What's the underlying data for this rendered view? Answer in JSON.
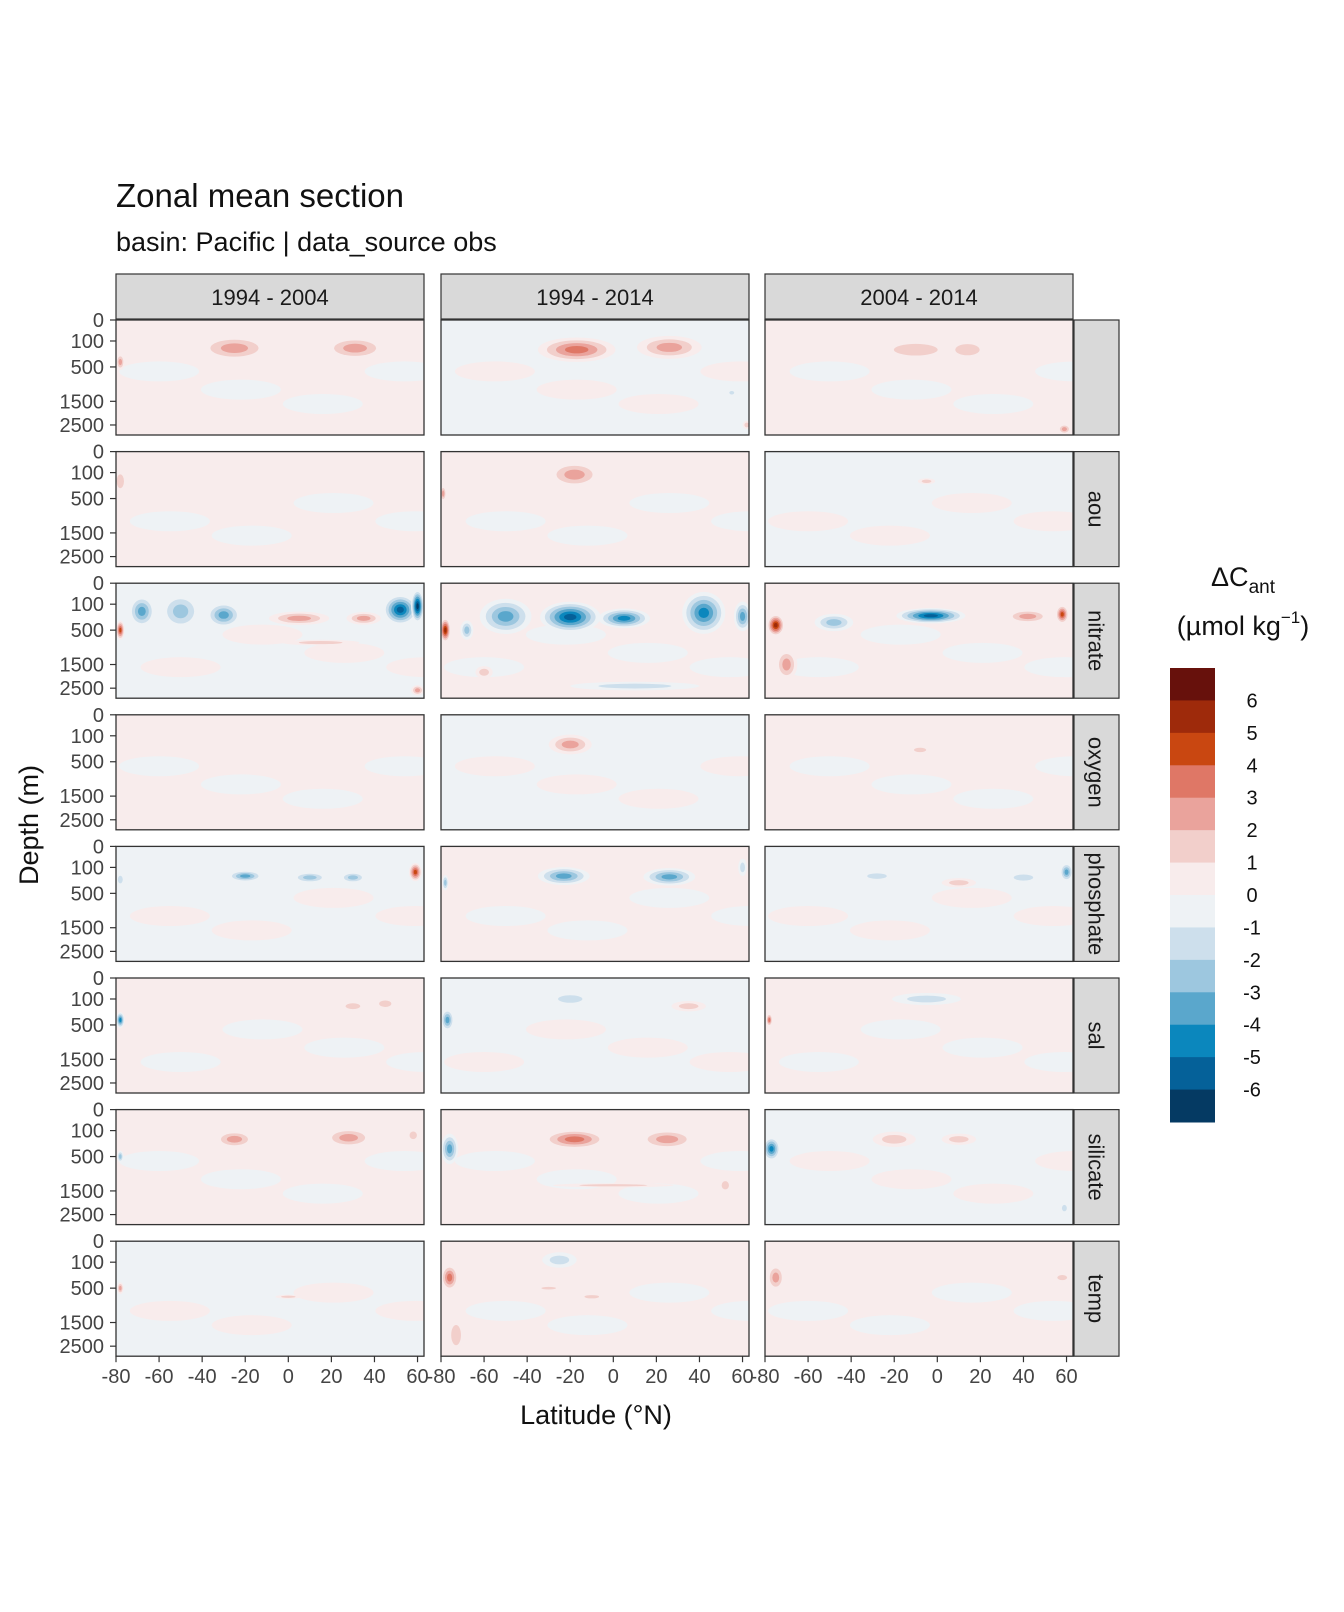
{
  "chart_data": {
    "type": "heatmap",
    "title": "Zonal mean section",
    "subtitle": "basin: Pacific | data_source obs",
    "xlabel": "Latitude (°N)",
    "ylabel": "Depth (m)",
    "x_ticks": [
      "-80",
      "-60",
      "-40",
      "-20",
      "0",
      "20",
      "40",
      "60"
    ],
    "x_tick_values": [
      -80,
      -60,
      -40,
      -20,
      0,
      20,
      40,
      60
    ],
    "xlim": [
      -80,
      63
    ],
    "y_ticks": [
      "0",
      "100",
      "500",
      "1500",
      "2500"
    ],
    "y_tick_values": [
      0,
      100,
      500,
      1500,
      2500
    ],
    "ylim": [
      3000,
      0
    ],
    "columns": [
      "1994 - 2004",
      "1994 - 2014",
      "2004 - 2014"
    ],
    "rows": [
      "",
      "aou",
      "nitrate",
      "oxygen",
      "phosphate",
      "sal",
      "silicate",
      "temp"
    ],
    "legend": {
      "title": "ΔC",
      "title_sub": "ant",
      "unit_prefix": "(µmol kg",
      "unit_sup": "−1",
      "unit_suffix": ")",
      "position": "right",
      "labels": [
        "6",
        "5",
        "4",
        "3",
        "2",
        "1",
        "0",
        "-1",
        "-2",
        "-3",
        "-4",
        "-5",
        "-6"
      ],
      "colors": [
        "#67110c",
        "#9e2a0b",
        "#c94711",
        "#df7766",
        "#eaa39c",
        "#f2cfcb",
        "#f8ecec",
        "#eef2f5",
        "#cddfec",
        "#9dc7df",
        "#5aa7cc",
        "#0b87bd",
        "#056199",
        "#053a63"
      ]
    },
    "blobs": [
      {
        "row": 0,
        "col": 0,
        "lat": -25,
        "depth": 180,
        "w": 16,
        "h": 280,
        "v": 2.2
      },
      {
        "row": 0,
        "col": 0,
        "lat": 31,
        "depth": 180,
        "w": 14,
        "h": 260,
        "v": 2.2
      },
      {
        "row": 0,
        "col": 0,
        "lat": -78,
        "depth": 400,
        "w": 2,
        "h": 300,
        "v": 2.5
      },
      {
        "row": 0,
        "col": 1,
        "lat": -17,
        "depth": 200,
        "w": 18,
        "h": 300,
        "v": 3.4
      },
      {
        "row": 0,
        "col": 1,
        "lat": 26,
        "depth": 170,
        "w": 15,
        "h": 260,
        "v": 2.6
      },
      {
        "row": 0,
        "col": 1,
        "lat": 55,
        "depth": 1200,
        "w": 2,
        "h": 200,
        "v": -1.8
      },
      {
        "row": 0,
        "col": 1,
        "lat": 62,
        "depth": 2500,
        "w": 2,
        "h": 400,
        "v": 1.5
      },
      {
        "row": 0,
        "col": 2,
        "lat": -10,
        "depth": 200,
        "w": 18,
        "h": 260,
        "v": 2
      },
      {
        "row": 0,
        "col": 2,
        "lat": 14,
        "depth": 200,
        "w": 10,
        "h": 250,
        "v": 1.6
      },
      {
        "row": 0,
        "col": 2,
        "lat": 59,
        "depth": 2700,
        "w": 3,
        "h": 500,
        "v": 2.2
      },
      {
        "row": 1,
        "col": 0,
        "lat": -78,
        "depth": 200,
        "w": 3,
        "h": 300,
        "v": 1.3
      },
      {
        "row": 1,
        "col": 1,
        "lat": -18,
        "depth": 120,
        "w": 12,
        "h": 220,
        "v": 2.3
      },
      {
        "row": 1,
        "col": 1,
        "lat": -79,
        "depth": 400,
        "w": 1.5,
        "h": 300,
        "v": 2.2
      },
      {
        "row": 1,
        "col": 2,
        "lat": -5,
        "depth": 200,
        "w": 4,
        "h": 80,
        "v": 1.5
      },
      {
        "row": 2,
        "col": 0,
        "lat": -68,
        "depth": 180,
        "w": 6,
        "h": 330,
        "v": -3.2
      },
      {
        "row": 2,
        "col": 0,
        "lat": -50,
        "depth": 180,
        "w": 9,
        "h": 350,
        "v": -3
      },
      {
        "row": 2,
        "col": 0,
        "lat": -30,
        "depth": 230,
        "w": 8,
        "h": 330,
        "v": -3.6
      },
      {
        "row": 2,
        "col": 0,
        "lat": 5,
        "depth": 280,
        "w": 14,
        "h": 210,
        "v": 2.5
      },
      {
        "row": 2,
        "col": 0,
        "lat": 35,
        "depth": 280,
        "w": 8,
        "h": 200,
        "v": 2.5
      },
      {
        "row": 2,
        "col": 0,
        "lat": 52,
        "depth": 160,
        "w": 8,
        "h": 300,
        "v": -5.4
      },
      {
        "row": 2,
        "col": 0,
        "lat": 60,
        "depth": 120,
        "w": 3,
        "h": 250,
        "v": -6.2
      },
      {
        "row": 2,
        "col": 0,
        "lat": -78,
        "depth": 500,
        "w": 2,
        "h": 400,
        "v": 4.5
      },
      {
        "row": 2,
        "col": 0,
        "lat": 60,
        "depth": 2600,
        "w": 3,
        "h": 500,
        "v": 3
      },
      {
        "row": 2,
        "col": 0,
        "lat": 15,
        "depth": 800,
        "w": 18,
        "h": 150,
        "v": 1.2
      },
      {
        "row": 2,
        "col": 1,
        "lat": -50,
        "depth": 250,
        "w": 12,
        "h": 450,
        "v": -3.8
      },
      {
        "row": 2,
        "col": 1,
        "lat": -20,
        "depth": 260,
        "w": 14,
        "h": 420,
        "v": -5.6
      },
      {
        "row": 2,
        "col": 1,
        "lat": 5,
        "depth": 280,
        "w": 12,
        "h": 300,
        "v": -4.3
      },
      {
        "row": 2,
        "col": 1,
        "lat": 42,
        "depth": 200,
        "w": 10,
        "h": 400,
        "v": -4.4
      },
      {
        "row": 2,
        "col": 1,
        "lat": 60,
        "depth": 250,
        "w": 4,
        "h": 400,
        "v": -4
      },
      {
        "row": 2,
        "col": 1,
        "lat": -78,
        "depth": 500,
        "w": 2.5,
        "h": 500,
        "v": 6
      },
      {
        "row": 2,
        "col": 1,
        "lat": -68,
        "depth": 500,
        "w": 3,
        "h": 400,
        "v": -3
      },
      {
        "row": 2,
        "col": 1,
        "lat": 10,
        "depth": 2400,
        "w": 30,
        "h": 400,
        "v": -1.4
      },
      {
        "row": 2,
        "col": 1,
        "lat": -60,
        "depth": 1800,
        "w": 4,
        "h": 500,
        "v": 1.3
      },
      {
        "row": 2,
        "col": 2,
        "lat": -75,
        "depth": 400,
        "w": 4,
        "h": 400,
        "v": 5.5
      },
      {
        "row": 2,
        "col": 2,
        "lat": -70,
        "depth": 1500,
        "w": 5,
        "h": 1100,
        "v": 2.5
      },
      {
        "row": 2,
        "col": 2,
        "lat": -48,
        "depth": 350,
        "w": 9,
        "h": 300,
        "v": -2.3
      },
      {
        "row": 2,
        "col": 2,
        "lat": -3,
        "depth": 240,
        "w": 16,
        "h": 220,
        "v": -5.8
      },
      {
        "row": 2,
        "col": 2,
        "lat": 42,
        "depth": 250,
        "w": 10,
        "h": 200,
        "v": 2.2
      },
      {
        "row": 2,
        "col": 2,
        "lat": 58,
        "depth": 220,
        "w": 3,
        "h": 250,
        "v": 4.2
      },
      {
        "row": 3,
        "col": 1,
        "lat": -20,
        "depth": 200,
        "w": 10,
        "h": 250,
        "v": 2.1
      },
      {
        "row": 3,
        "col": 2,
        "lat": -8,
        "depth": 280,
        "w": 5,
        "h": 120,
        "v": 2
      },
      {
        "row": 4,
        "col": 0,
        "lat": -20,
        "depth": 200,
        "w": 8,
        "h": 150,
        "v": -3.1
      },
      {
        "row": 4,
        "col": 0,
        "lat": 10,
        "depth": 220,
        "w": 8,
        "h": 150,
        "v": -2.2
      },
      {
        "row": 4,
        "col": 0,
        "lat": 30,
        "depth": 220,
        "w": 6,
        "h": 150,
        "v": -2.2
      },
      {
        "row": 4,
        "col": 0,
        "lat": 59,
        "depth": 150,
        "w": 3,
        "h": 200,
        "v": 4.5
      },
      {
        "row": 4,
        "col": 0,
        "lat": -78,
        "depth": 250,
        "w": 2,
        "h": 200,
        "v": -2
      },
      {
        "row": 4,
        "col": 1,
        "lat": -23,
        "depth": 200,
        "w": 12,
        "h": 230,
        "v": -3.8
      },
      {
        "row": 4,
        "col": 1,
        "lat": 26,
        "depth": 210,
        "w": 12,
        "h": 230,
        "v": -3.8
      },
      {
        "row": 4,
        "col": 1,
        "lat": -78,
        "depth": 300,
        "w": 1.5,
        "h": 250,
        "v": -2.5
      },
      {
        "row": 4,
        "col": 1,
        "lat": 60,
        "depth": 100,
        "w": 2,
        "h": 150,
        "v": -2
      },
      {
        "row": 4,
        "col": 2,
        "lat": -28,
        "depth": 200,
        "w": 8,
        "h": 130,
        "v": -2
      },
      {
        "row": 4,
        "col": 2,
        "lat": 10,
        "depth": 300,
        "w": 8,
        "h": 150,
        "v": 2
      },
      {
        "row": 4,
        "col": 2,
        "lat": 40,
        "depth": 220,
        "w": 8,
        "h": 150,
        "v": -2
      },
      {
        "row": 4,
        "col": 2,
        "lat": 60,
        "depth": 150,
        "w": 3,
        "h": 200,
        "v": -4
      },
      {
        "row": 5,
        "col": 0,
        "lat": -78,
        "depth": 400,
        "w": 2,
        "h": 300,
        "v": -4.5
      },
      {
        "row": 5,
        "col": 0,
        "lat": 30,
        "depth": 180,
        "w": 6,
        "h": 130,
        "v": 2
      },
      {
        "row": 5,
        "col": 0,
        "lat": 45,
        "depth": 150,
        "w": 5,
        "h": 130,
        "v": 2
      },
      {
        "row": 5,
        "col": 1,
        "lat": -77,
        "depth": 400,
        "w": 3,
        "h": 400,
        "v": -3.2
      },
      {
        "row": 5,
        "col": 1,
        "lat": -20,
        "depth": 100,
        "w": 10,
        "h": 120,
        "v": -2
      },
      {
        "row": 5,
        "col": 1,
        "lat": 35,
        "depth": 180,
        "w": 8,
        "h": 130,
        "v": 2
      },
      {
        "row": 5,
        "col": 2,
        "lat": -78,
        "depth": 400,
        "w": 1.5,
        "h": 250,
        "v": 3.5
      },
      {
        "row": 5,
        "col": 2,
        "lat": -5,
        "depth": 100,
        "w": 16,
        "h": 110,
        "v": -2
      },
      {
        "row": 6,
        "col": 0,
        "lat": -25,
        "depth": 200,
        "w": 9,
        "h": 220,
        "v": 2.4
      },
      {
        "row": 6,
        "col": 0,
        "lat": 28,
        "depth": 180,
        "w": 11,
        "h": 230,
        "v": 2.6
      },
      {
        "row": 6,
        "col": 0,
        "lat": 58,
        "depth": 150,
        "w": 3,
        "h": 150,
        "v": 1.8
      },
      {
        "row": 6,
        "col": 0,
        "lat": -78,
        "depth": 500,
        "w": 1.5,
        "h": 250,
        "v": -3
      },
      {
        "row": 6,
        "col": 1,
        "lat": -76,
        "depth": 350,
        "w": 4,
        "h": 500,
        "v": -4
      },
      {
        "row": 6,
        "col": 1,
        "lat": -18,
        "depth": 200,
        "w": 15,
        "h": 250,
        "v": 3.2
      },
      {
        "row": 6,
        "col": 1,
        "lat": 25,
        "depth": 200,
        "w": 13,
        "h": 250,
        "v": 2.9
      },
      {
        "row": 6,
        "col": 1,
        "lat": 0,
        "depth": 1300,
        "w": 28,
        "h": 100,
        "v": 1.3
      },
      {
        "row": 6,
        "col": 1,
        "lat": 52,
        "depth": 1300,
        "w": 3,
        "h": 500,
        "v": 1.3
      },
      {
        "row": 6,
        "col": 2,
        "lat": -77,
        "depth": 350,
        "w": 4,
        "h": 400,
        "v": -4.5
      },
      {
        "row": 6,
        "col": 2,
        "lat": -20,
        "depth": 200,
        "w": 10,
        "h": 200,
        "v": 2
      },
      {
        "row": 6,
        "col": 2,
        "lat": 10,
        "depth": 200,
        "w": 8,
        "h": 150,
        "v": 1.6
      },
      {
        "row": 6,
        "col": 2,
        "lat": 59,
        "depth": 2200,
        "w": 2,
        "h": 500,
        "v": -2
      },
      {
        "row": 7,
        "col": 0,
        "lat": -78,
        "depth": 500,
        "w": 1.5,
        "h": 250,
        "v": 2.5
      },
      {
        "row": 7,
        "col": 0,
        "lat": 0,
        "depth": 700,
        "w": 6,
        "h": 100,
        "v": 1.5
      },
      {
        "row": 7,
        "col": 1,
        "lat": -76,
        "depth": 300,
        "w": 4,
        "h": 400,
        "v": 3.2
      },
      {
        "row": 7,
        "col": 1,
        "lat": -73,
        "depth": 2000,
        "w": 4,
        "h": 1500,
        "v": 1.6
      },
      {
        "row": 7,
        "col": 1,
        "lat": -25,
        "depth": 80,
        "w": 8,
        "h": 120,
        "v": -2
      },
      {
        "row": 7,
        "col": 1,
        "lat": -30,
        "depth": 500,
        "w": 6,
        "h": 100,
        "v": 1.4
      },
      {
        "row": 7,
        "col": 1,
        "lat": -10,
        "depth": 700,
        "w": 6,
        "h": 150,
        "v": 1.2
      },
      {
        "row": 7,
        "col": 2,
        "lat": -75,
        "depth": 300,
        "w": 4,
        "h": 400,
        "v": 2.6
      },
      {
        "row": 7,
        "col": 2,
        "lat": 58,
        "depth": 300,
        "w": 4,
        "h": 150,
        "v": 2
      }
    ]
  }
}
